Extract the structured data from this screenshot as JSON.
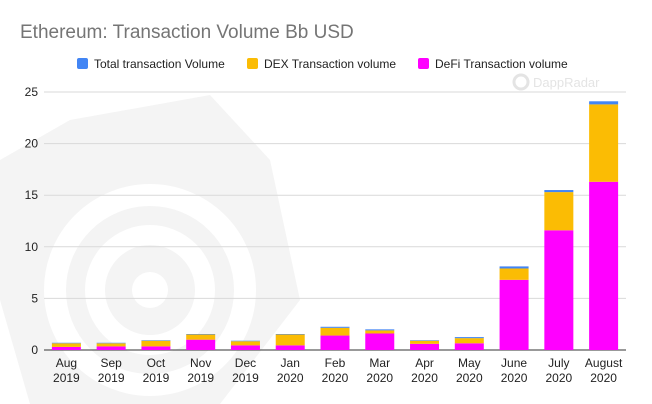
{
  "chart_data": {
    "type": "bar",
    "stacked": true,
    "title": "Ethereum: Transaction Volume Bb USD",
    "brand": "DappRadar",
    "categories": [
      [
        "Aug",
        "2019"
      ],
      [
        "Sep",
        "2019"
      ],
      [
        "Oct",
        "2019"
      ],
      [
        "Nov",
        "2019"
      ],
      [
        "Dec",
        "2019"
      ],
      [
        "Jan",
        "2020"
      ],
      [
        "Feb",
        "2020"
      ],
      [
        "Mar",
        "2020"
      ],
      [
        "Apr",
        "2020"
      ],
      [
        "May",
        "2020"
      ],
      [
        "June",
        "2020"
      ],
      [
        "July",
        "2020"
      ],
      [
        "August",
        "2020"
      ]
    ],
    "series": [
      {
        "name": "DeFi Transaction volume",
        "color": "#ff00ff",
        "values": [
          0.3,
          0.35,
          0.35,
          1.0,
          0.45,
          0.45,
          1.4,
          1.6,
          0.6,
          0.65,
          6.8,
          11.6,
          16.3
        ]
      },
      {
        "name": "DEX Transaction volume",
        "color": "#fbbc04",
        "values": [
          0.35,
          0.3,
          0.55,
          0.5,
          0.4,
          1.05,
          0.75,
          0.3,
          0.3,
          0.5,
          1.1,
          3.7,
          7.5
        ]
      },
      {
        "name": "Total transaction Volume",
        "color": "#4285f4",
        "values": [
          0.05,
          0.05,
          0.05,
          0.05,
          0.05,
          0.05,
          0.1,
          0.1,
          0.05,
          0.1,
          0.2,
          0.2,
          0.3
        ]
      }
    ],
    "legend_order": [
      2,
      1,
      0
    ],
    "legend_position": "top",
    "y_ticks": [
      0,
      5,
      10,
      15,
      20,
      25
    ],
    "ylim": [
      0,
      25
    ],
    "grid": true
  }
}
